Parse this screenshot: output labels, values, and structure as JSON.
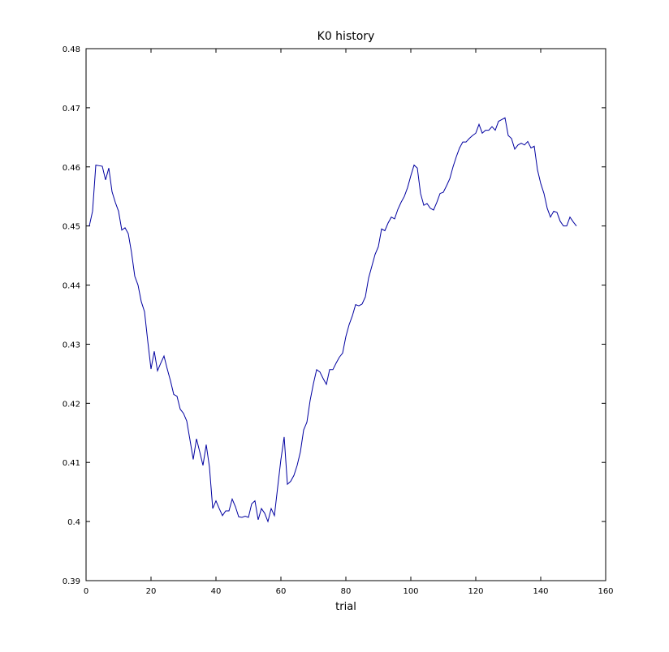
{
  "chart_data": {
    "type": "line",
    "title": "K0 history",
    "xlabel": "trial",
    "ylabel": "",
    "xlim": [
      0,
      160
    ],
    "ylim": [
      0.39,
      0.48
    ],
    "xticks": [
      0,
      20,
      40,
      60,
      80,
      100,
      120,
      140,
      160
    ],
    "yticks": [
      0.39,
      0.4,
      0.41,
      0.42,
      0.43,
      0.44,
      0.45,
      0.46,
      0.47,
      0.48
    ],
    "xtick_labels": [
      "0",
      "20",
      "40",
      "60",
      "80",
      "100",
      "120",
      "140",
      "160"
    ],
    "ytick_labels": [
      "0.39",
      "0.4",
      "0.41",
      "0.42",
      "0.43",
      "0.44",
      "0.45",
      "0.46",
      "0.47",
      "0.48"
    ],
    "grid": false,
    "line_color": "#0000a0",
    "series": [
      {
        "x": [
          1,
          2,
          3,
          4,
          5,
          6,
          7,
          8,
          9,
          10,
          11,
          12,
          13,
          14,
          15,
          16,
          17,
          18,
          19,
          20,
          21,
          22,
          23,
          24,
          25,
          26,
          27,
          28,
          29,
          30,
          31,
          32,
          33,
          34,
          35,
          36,
          37,
          38,
          39,
          40,
          41,
          42,
          43,
          44,
          45,
          46,
          47,
          48,
          49,
          50,
          51,
          52,
          53,
          54,
          55,
          56,
          57,
          58,
          59,
          60,
          61,
          62,
          63,
          64,
          65,
          66,
          67,
          68,
          69,
          70,
          71,
          72,
          73,
          74,
          75,
          76,
          77,
          78,
          79,
          80,
          81,
          82,
          83,
          84,
          85,
          86,
          87,
          88,
          89,
          90,
          91,
          92,
          93,
          94,
          95,
          96,
          97,
          98,
          99,
          100,
          101,
          102,
          103,
          104,
          105,
          106,
          107,
          108,
          109,
          110,
          111,
          112,
          113,
          114,
          115,
          116,
          117,
          118,
          119,
          120,
          121,
          122,
          123,
          124,
          125,
          126,
          127,
          128,
          129,
          130,
          131,
          132,
          133,
          134,
          135,
          136,
          137,
          138,
          139,
          140,
          141,
          142,
          143,
          144,
          145,
          146,
          147,
          148,
          149,
          150,
          151
        ],
        "values": [
          0.45,
          0.4525,
          0.4603,
          0.4602,
          0.4601,
          0.4578,
          0.4598,
          0.4558,
          0.454,
          0.4525,
          0.4493,
          0.4497,
          0.4487,
          0.4455,
          0.4415,
          0.44,
          0.4372,
          0.4355,
          0.4305,
          0.4258,
          0.4288,
          0.4255,
          0.4268,
          0.428,
          0.4258,
          0.4238,
          0.4215,
          0.4212,
          0.419,
          0.4183,
          0.417,
          0.4138,
          0.4105,
          0.414,
          0.4118,
          0.4095,
          0.413,
          0.4092,
          0.4022,
          0.4035,
          0.4022,
          0.401,
          0.4018,
          0.4018,
          0.4038,
          0.4025,
          0.4008,
          0.4007,
          0.4009,
          0.4007,
          0.403,
          0.4035,
          0.4003,
          0.4022,
          0.4014,
          0.4,
          0.4022,
          0.401,
          0.4058,
          0.4105,
          0.4143,
          0.4063,
          0.4068,
          0.4078,
          0.4095,
          0.4118,
          0.4155,
          0.4168,
          0.4205,
          0.4233,
          0.4257,
          0.4253,
          0.4242,
          0.4232,
          0.4257,
          0.4257,
          0.4268,
          0.4278,
          0.4285,
          0.4313,
          0.4333,
          0.4348,
          0.4367,
          0.4365,
          0.4368,
          0.438,
          0.4412,
          0.4432,
          0.4452,
          0.4465,
          0.4495,
          0.4492,
          0.4505,
          0.4515,
          0.4512,
          0.4528,
          0.454,
          0.455,
          0.4565,
          0.4585,
          0.4603,
          0.4598,
          0.4555,
          0.4535,
          0.4538,
          0.453,
          0.4527,
          0.454,
          0.4555,
          0.4557,
          0.4568,
          0.458,
          0.46,
          0.4617,
          0.4632,
          0.4642,
          0.4642,
          0.4648,
          0.4653,
          0.4657,
          0.4672,
          0.4657,
          0.4662,
          0.4662,
          0.4668,
          0.4662,
          0.4677,
          0.468,
          0.4683,
          0.4653,
          0.4648,
          0.463,
          0.4637,
          0.464,
          0.4637,
          0.4643,
          0.4632,
          0.4635,
          0.4595,
          0.4572,
          0.4555,
          0.453,
          0.4515,
          0.4525,
          0.4523,
          0.4508,
          0.45,
          0.45,
          0.4515,
          0.4507,
          0.45
        ]
      }
    ]
  }
}
